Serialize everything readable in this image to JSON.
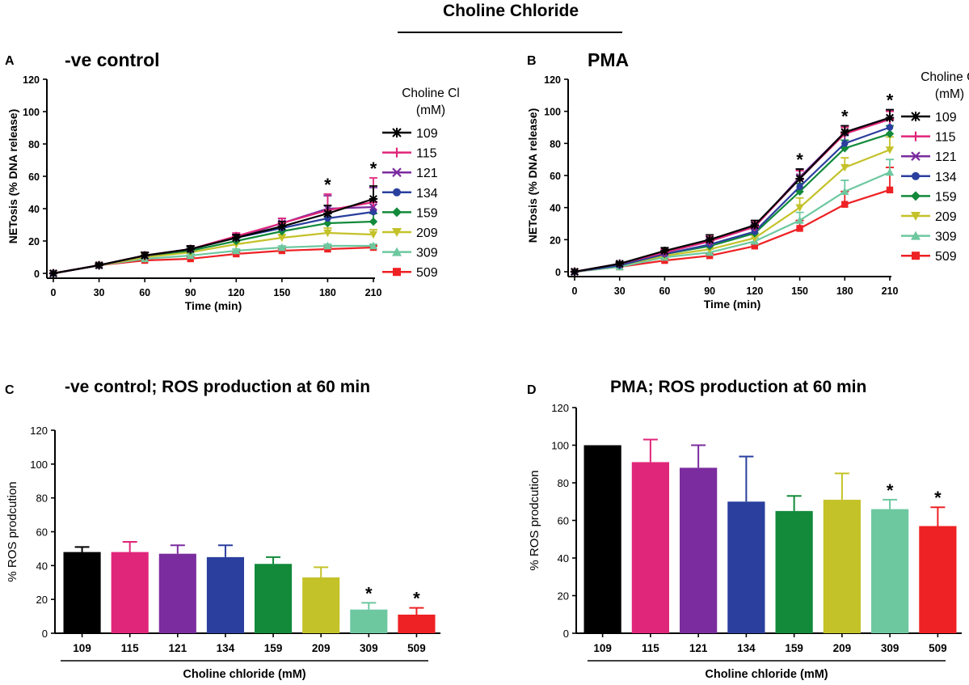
{
  "figure": {
    "title": "Choline Chloride",
    "legend_title_line1": "Choline Cl",
    "legend_title_line2": "(mM)",
    "series_colors": [
      "#000000",
      "#e0267a",
      "#7b2c9e",
      "#2a3f9e",
      "#128a3a",
      "#c4c229",
      "#6dc8a0",
      "#ee2124"
    ],
    "series_markers": [
      "asterisk",
      "plus",
      "cross",
      "circle",
      "diamond",
      "triangle-down",
      "triangle-up",
      "square"
    ]
  },
  "chart_data": [
    {
      "panel": "A",
      "type": "line",
      "title": "-ve control",
      "xlabel": "Time (min)",
      "ylabel": "NETosis (% DNA release)",
      "x": [
        0,
        30,
        60,
        90,
        120,
        150,
        180,
        210
      ],
      "xlim": [
        0,
        210
      ],
      "ylim": [
        0,
        120
      ],
      "yticks": [
        0,
        20,
        40,
        60,
        80,
        100,
        120
      ],
      "legend_title": "Choline Cl (mM)",
      "series": [
        {
          "name": "109",
          "values": [
            0,
            5,
            11,
            15,
            22,
            29,
            37,
            46
          ],
          "err": [
            0,
            1,
            2,
            2,
            2,
            3,
            5,
            8
          ]
        },
        {
          "name": "115",
          "values": [
            0,
            5,
            11,
            15,
            23,
            31,
            39,
            44
          ],
          "err": [
            0,
            1,
            2,
            2,
            2,
            3,
            10,
            15
          ]
        },
        {
          "name": "121",
          "values": [
            0,
            5,
            11,
            15,
            22,
            31,
            40,
            41
          ],
          "err": [
            0,
            1,
            2,
            2,
            2,
            3,
            8,
            12
          ]
        },
        {
          "name": "134",
          "values": [
            0,
            5,
            11,
            15,
            22,
            28,
            34,
            38
          ],
          "err": [
            0,
            1,
            2,
            2,
            2,
            3,
            5,
            8
          ]
        },
        {
          "name": "159",
          "values": [
            0,
            5,
            11,
            14,
            20,
            26,
            31,
            32
          ],
          "err": [
            0,
            1,
            2,
            2,
            2,
            3,
            4,
            5
          ]
        },
        {
          "name": "209",
          "values": [
            0,
            5,
            10,
            13,
            18,
            22,
            25,
            24
          ],
          "err": [
            0,
            1,
            2,
            2,
            2,
            2,
            3,
            3
          ]
        },
        {
          "name": "309",
          "values": [
            0,
            5,
            9,
            11,
            14,
            16,
            17,
            17
          ],
          "err": [
            0,
            1,
            1,
            1,
            1,
            1,
            1,
            1
          ]
        },
        {
          "name": "509",
          "values": [
            0,
            5,
            8,
            9,
            12,
            14,
            15,
            16
          ],
          "err": [
            0,
            1,
            1,
            1,
            1,
            1,
            1,
            1
          ]
        }
      ],
      "significance_x": [
        180,
        210
      ],
      "significance_label": "*"
    },
    {
      "panel": "B",
      "type": "line",
      "title": "PMA",
      "xlabel": "Time (min)",
      "ylabel": "NETosis (% DNA release)",
      "x": [
        0,
        30,
        60,
        90,
        120,
        150,
        180,
        210
      ],
      "xlim": [
        0,
        210
      ],
      "ylim": [
        0,
        120
      ],
      "yticks": [
        0,
        20,
        40,
        60,
        80,
        100,
        120
      ],
      "legend_title": "Choline Cl (mM)",
      "series": [
        {
          "name": "109",
          "values": [
            0,
            5,
            13,
            20,
            29,
            58,
            87,
            96
          ],
          "err": [
            0,
            1,
            2,
            3,
            3,
            6,
            4,
            5
          ]
        },
        {
          "name": "115",
          "values": [
            0,
            5,
            12,
            19,
            28,
            58,
            86,
            95
          ],
          "err": [
            0,
            1,
            2,
            3,
            3,
            5,
            4,
            5
          ]
        },
        {
          "name": "121",
          "values": [
            0,
            5,
            12,
            19,
            28,
            59,
            87,
            96
          ],
          "err": [
            0,
            1,
            2,
            3,
            3,
            5,
            4,
            5
          ]
        },
        {
          "name": "134",
          "values": [
            0,
            4,
            11,
            17,
            25,
            53,
            80,
            90
          ],
          "err": [
            0,
            1,
            2,
            2,
            3,
            5,
            5,
            5
          ]
        },
        {
          "name": "159",
          "values": [
            0,
            4,
            11,
            16,
            24,
            50,
            77,
            86
          ],
          "err": [
            0,
            1,
            2,
            2,
            3,
            5,
            5,
            5
          ]
        },
        {
          "name": "209",
          "values": [
            0,
            4,
            10,
            14,
            21,
            40,
            65,
            76
          ],
          "err": [
            0,
            1,
            2,
            2,
            3,
            6,
            6,
            8
          ]
        },
        {
          "name": "309",
          "values": [
            0,
            3,
            9,
            12,
            19,
            32,
            50,
            62
          ],
          "err": [
            0,
            2,
            2,
            2,
            2,
            5,
            7,
            8
          ]
        },
        {
          "name": "509",
          "values": [
            0,
            3,
            7,
            10,
            16,
            27,
            42,
            51
          ],
          "err": [
            0,
            1,
            1,
            1,
            1,
            5,
            8,
            14
          ]
        }
      ],
      "significance_x": [
        150,
        180,
        210
      ],
      "significance_label": "*"
    },
    {
      "panel": "C",
      "type": "bar",
      "title": "-ve control; ROS production at 60 min",
      "xlabel": "Choline chloride (mM)",
      "ylabel": "% ROS prodcution",
      "categories": [
        "109",
        "115",
        "121",
        "134",
        "159",
        "209",
        "309",
        "509"
      ],
      "values": [
        48,
        48,
        47,
        45,
        41,
        33,
        14,
        11
      ],
      "err": [
        3,
        6,
        5,
        7,
        4,
        6,
        4,
        4
      ],
      "ylim": [
        0,
        120
      ],
      "yticks": [
        0,
        20,
        40,
        60,
        80,
        100,
        120
      ],
      "significant": [
        "309",
        "509"
      ],
      "significance_label": "*"
    },
    {
      "panel": "D",
      "type": "bar",
      "title": "PMA; ROS production at 60 min",
      "xlabel": "Choline chloride (mM)",
      "ylabel": "% ROS prodcution",
      "categories": [
        "109",
        "115",
        "121",
        "134",
        "159",
        "209",
        "309",
        "509"
      ],
      "values": [
        100,
        91,
        88,
        70,
        65,
        71,
        66,
        57
      ],
      "err": [
        0,
        12,
        12,
        24,
        8,
        14,
        5,
        10
      ],
      "ylim": [
        0,
        120
      ],
      "yticks": [
        0,
        20,
        40,
        60,
        80,
        100,
        120
      ],
      "significant": [
        "309",
        "509"
      ],
      "significance_label": "*"
    }
  ]
}
